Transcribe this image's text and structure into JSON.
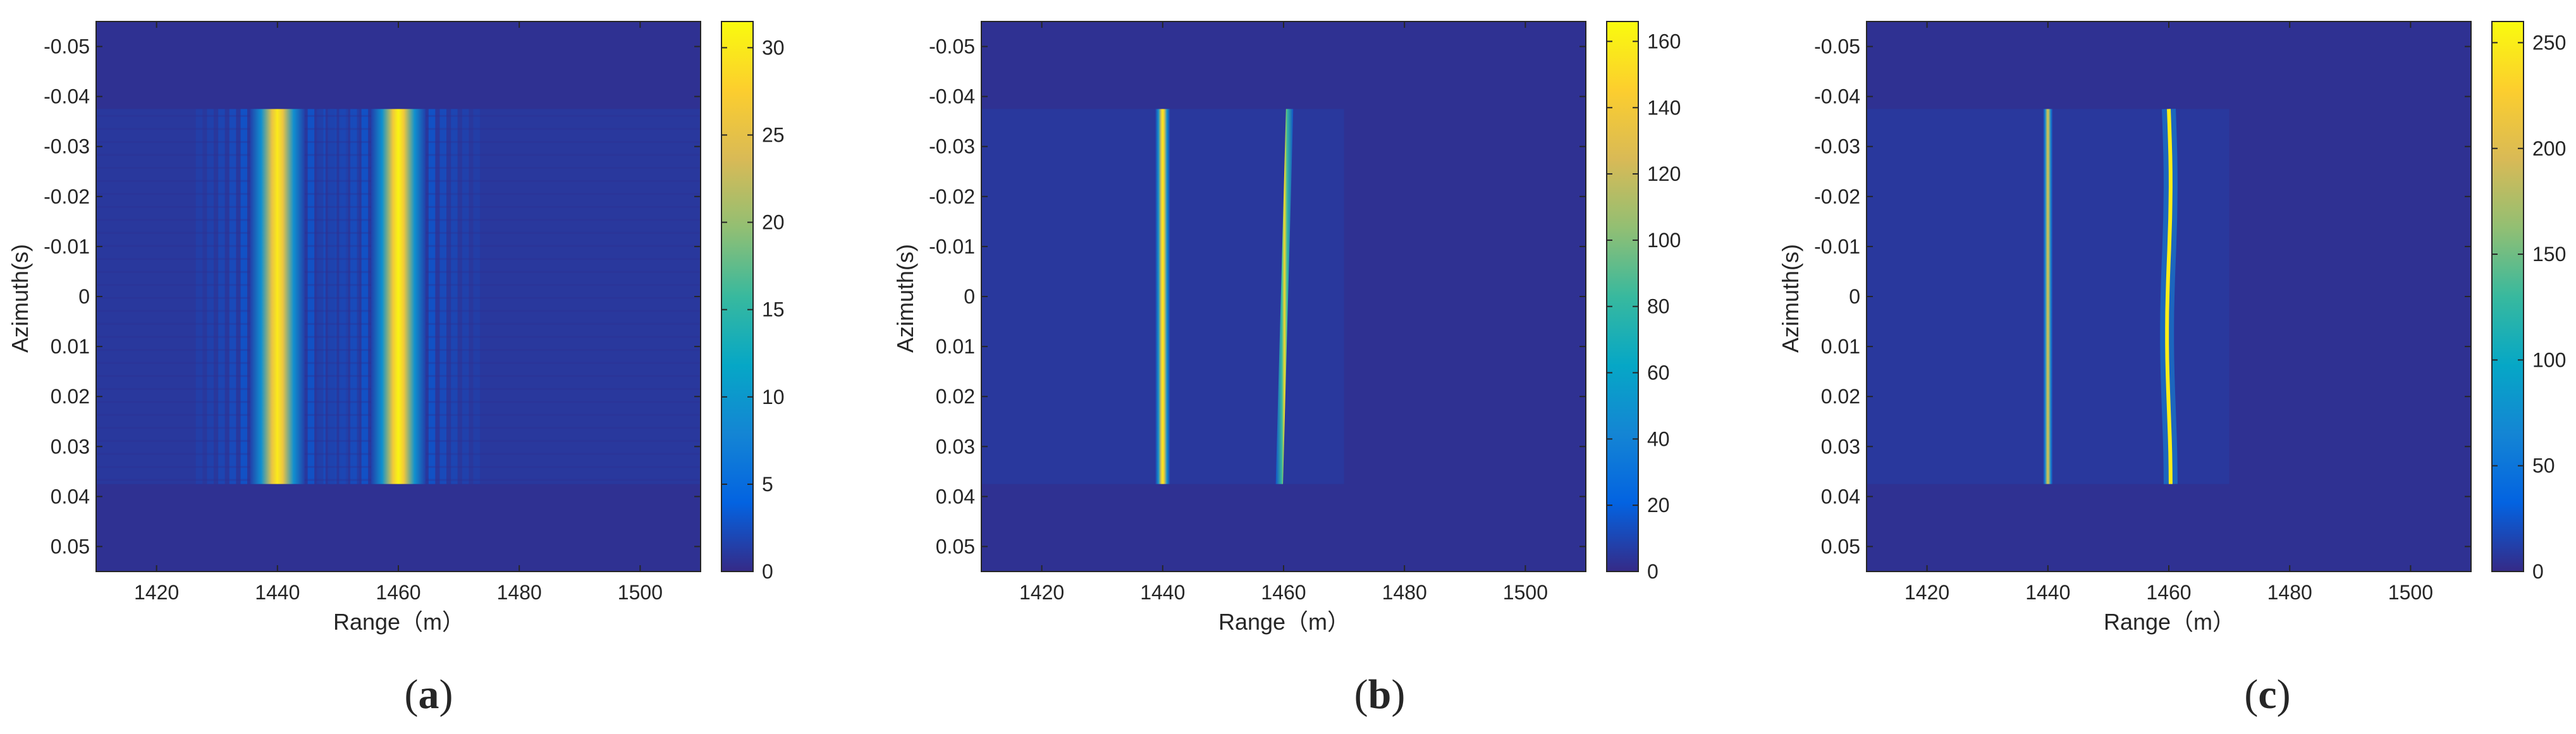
{
  "colors": {
    "background": "#3e26a8",
    "axis": "#262626",
    "parula": [
      "#352a87",
      "#0363e1",
      "#1485d4",
      "#06a7c6",
      "#38b99e",
      "#92bf73",
      "#d9ba56",
      "#fcce2e",
      "#f9fb0e"
    ]
  },
  "chart_data": [
    {
      "type": "heatmap",
      "panel_label": "a",
      "xlabel": "Range（m）",
      "ylabel": "Azimuth(s)",
      "xlim": [
        1410,
        1510
      ],
      "ylim": [
        -0.055,
        0.055
      ],
      "x_ticks": [
        1420,
        1440,
        1460,
        1480,
        1500
      ],
      "y_ticks": [
        -0.05,
        -0.04,
        -0.03,
        -0.02,
        -0.01,
        0,
        0.01,
        0.02,
        0.03,
        0.04,
        0.05
      ],
      "y_tick_labels": [
        "-0.05",
        "-0.04",
        "-0.03",
        "-0.02",
        "-0.01",
        "0",
        "0.01",
        "0.02",
        "0.03",
        "0.04",
        "0.05"
      ],
      "colorbar": {
        "ticks": [
          0,
          5,
          10,
          15,
          20,
          25,
          30
        ],
        "max": 31.5
      },
      "signal_extent": {
        "azimuth": [
          -0.0375,
          0.0375
        ],
        "range_max": 1510
      },
      "targets": [
        {
          "range": 1440,
          "peak": 30,
          "width_m": 4.5,
          "sidelobes": true
        },
        {
          "range": 1460,
          "peak": 31,
          "width_m": 4.5,
          "sidelobes": true
        }
      ]
    },
    {
      "type": "heatmap",
      "panel_label": "b",
      "xlabel": "Range（m）",
      "ylabel": "Azimuth(s)",
      "xlim": [
        1410,
        1510
      ],
      "ylim": [
        -0.055,
        0.055
      ],
      "x_ticks": [
        1420,
        1440,
        1460,
        1480,
        1500
      ],
      "y_ticks": [
        -0.05,
        -0.04,
        -0.03,
        -0.02,
        -0.01,
        0,
        0.01,
        0.02,
        0.03,
        0.04,
        0.05
      ],
      "y_tick_labels": [
        "-0.05",
        "-0.04",
        "-0.03",
        "-0.02",
        "-0.01",
        "0",
        "0.01",
        "0.02",
        "0.03",
        "0.04",
        "0.05"
      ],
      "colorbar": {
        "ticks": [
          0,
          20,
          40,
          60,
          80,
          100,
          120,
          140,
          160
        ],
        "max": 166
      },
      "signal_extent": {
        "azimuth": [
          -0.0375,
          0.0375
        ],
        "range_max": 1470
      },
      "targets": [
        {
          "range": 1440,
          "peak": 160,
          "width_m": 1.2,
          "sidelobes": false
        },
        {
          "range": 1460,
          "range_start": 1461,
          "range_end": 1459.3,
          "peak": 150,
          "width_m": 1.2,
          "sidelobes": false
        }
      ]
    },
    {
      "type": "heatmap",
      "panel_label": "c",
      "xlabel": "Range（m）",
      "ylabel": "Azimuth(s)",
      "xlim": [
        1410,
        1510
      ],
      "ylim": [
        -0.055,
        0.055
      ],
      "x_ticks": [
        1420,
        1440,
        1460,
        1480,
        1500
      ],
      "y_ticks": [
        -0.05,
        -0.04,
        -0.03,
        -0.02,
        -0.01,
        0,
        0.01,
        0.02,
        0.03,
        0.04,
        0.05
      ],
      "y_tick_labels": [
        "-0.05",
        "-0.04",
        "-0.03",
        "-0.02",
        "-0.01",
        "0",
        "0.01",
        "0.02",
        "0.03",
        "0.04",
        "0.05"
      ],
      "colorbar": {
        "ticks": [
          0,
          50,
          100,
          150,
          200,
          250
        ],
        "max": 260
      },
      "signal_extent": {
        "azimuth": [
          -0.0375,
          0.0375
        ],
        "range_max": 1470
      },
      "targets": [
        {
          "range": 1440,
          "peak": 200,
          "width_m": 0.8,
          "sidelobes": false
        },
        {
          "range": 1460,
          "peak": 250,
          "width_m": 0.8,
          "sidelobes": false,
          "wiggle_m": 0.3
        }
      ]
    }
  ]
}
